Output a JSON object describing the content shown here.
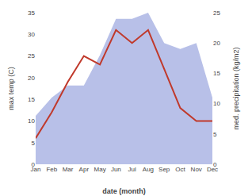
{
  "chart_data": {
    "type": "line",
    "categories": [
      "Jan",
      "Feb",
      "Mar",
      "Apr",
      "May",
      "Jun",
      "Jul",
      "Aug",
      "Sep",
      "Oct",
      "Nov",
      "Dec"
    ],
    "xlabel": "date (month)",
    "ylabel": "max temp (C)",
    "y2label": "med. precipitation (kg/m2)",
    "ylim": [
      0,
      35
    ],
    "yticks": [
      0,
      5,
      10,
      15,
      20,
      25,
      30,
      35
    ],
    "y2lim": [
      0,
      25
    ],
    "y2ticks": [
      0,
      5,
      10,
      15,
      20,
      25
    ],
    "grid": false,
    "series": [
      {
        "type": "area",
        "axis": "y2",
        "color": "#b8c0e8",
        "values": [
          8,
          11,
          13,
          13,
          18,
          24,
          24,
          25,
          20,
          19,
          20,
          11
        ]
      },
      {
        "type": "line",
        "color": "#c0392b",
        "values": [
          6,
          12,
          19,
          25,
          23,
          31,
          28,
          31,
          22,
          13,
          10,
          10
        ]
      }
    ]
  }
}
